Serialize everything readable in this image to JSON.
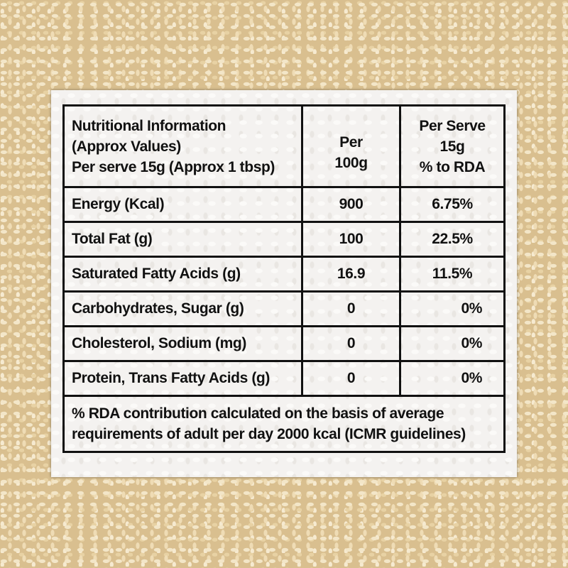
{
  "table": {
    "header": {
      "col1": [
        "Nutritional Information",
        "(Approx Values)",
        "Per serve 15g (Approx 1 tbsp)"
      ],
      "col2": [
        "Per",
        "100g"
      ],
      "col3": [
        "Per Serve",
        "15g",
        "% to RDA"
      ]
    },
    "rows": [
      {
        "nutrient": "Energy (Kcal)",
        "per_100g": "900",
        "rda": "6.75%"
      },
      {
        "nutrient": "Total Fat (g)",
        "per_100g": "100",
        "rda": "22.5%"
      },
      {
        "nutrient": "Saturated Fatty Acids (g)",
        "per_100g": "16.9",
        "rda": "11.5%"
      },
      {
        "nutrient": "Carbohydrates, Sugar (g)",
        "per_100g": "0",
        "rda": "0%"
      },
      {
        "nutrient": "Cholesterol, Sodium (mg)",
        "per_100g": "0",
        "rda": "0%"
      },
      {
        "nutrient": "Protein, Trans Fatty Acids (g)",
        "per_100g": "0",
        "rda": "0%"
      }
    ],
    "footnote": [
      "% RDA contribution calculated on the basis of average",
      "requirements of adult per day 2000 kcal (ICMR guidelines)"
    ]
  }
}
